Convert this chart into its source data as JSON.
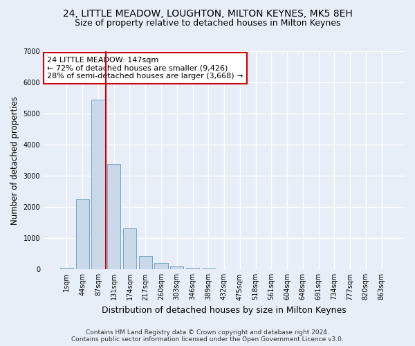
{
  "title": "24, LITTLE MEADOW, LOUGHTON, MILTON KEYNES, MK5 8EH",
  "subtitle": "Size of property relative to detached houses in Milton Keynes",
  "xlabel": "Distribution of detached houses by size in Milton Keynes",
  "ylabel": "Number of detached properties",
  "footer_line1": "Contains HM Land Registry data © Crown copyright and database right 2024.",
  "footer_line2": "Contains public sector information licensed under the Open Government Licence v3.0.",
  "annotation_title": "24 LITTLE MEADOW: 147sqm",
  "annotation_line2": "← 72% of detached houses are smaller (9,426)",
  "annotation_line3": "28% of semi-detached houses are larger (3,668) →",
  "bar_color": "#c9d9ea",
  "bar_edge_color": "#6699bb",
  "vline_color": "#cc0000",
  "vline_x": 2.5,
  "categories": [
    "1sqm",
    "44sqm",
    "87sqm",
    "131sqm",
    "174sqm",
    "217sqm",
    "260sqm",
    "303sqm",
    "346sqm",
    "389sqm",
    "432sqm",
    "475sqm",
    "518sqm",
    "561sqm",
    "604sqm",
    "648sqm",
    "691sqm",
    "734sqm",
    "777sqm",
    "820sqm",
    "863sqm"
  ],
  "values": [
    60,
    2250,
    5450,
    3380,
    1320,
    420,
    200,
    105,
    55,
    20,
    8,
    3,
    1,
    0,
    0,
    0,
    0,
    0,
    0,
    0,
    0
  ],
  "ylim": [
    0,
    7000
  ],
  "yticks": [
    0,
    1000,
    2000,
    3000,
    4000,
    5000,
    6000,
    7000
  ],
  "bg_color": "#e8eef8",
  "plot_bg_color": "#e8eef8",
  "grid_color": "#ffffff",
  "title_fontsize": 10,
  "subtitle_fontsize": 9,
  "xlabel_fontsize": 9,
  "ylabel_fontsize": 8.5,
  "tick_fontsize": 7,
  "footer_fontsize": 6.5,
  "ann_fontsize": 8
}
